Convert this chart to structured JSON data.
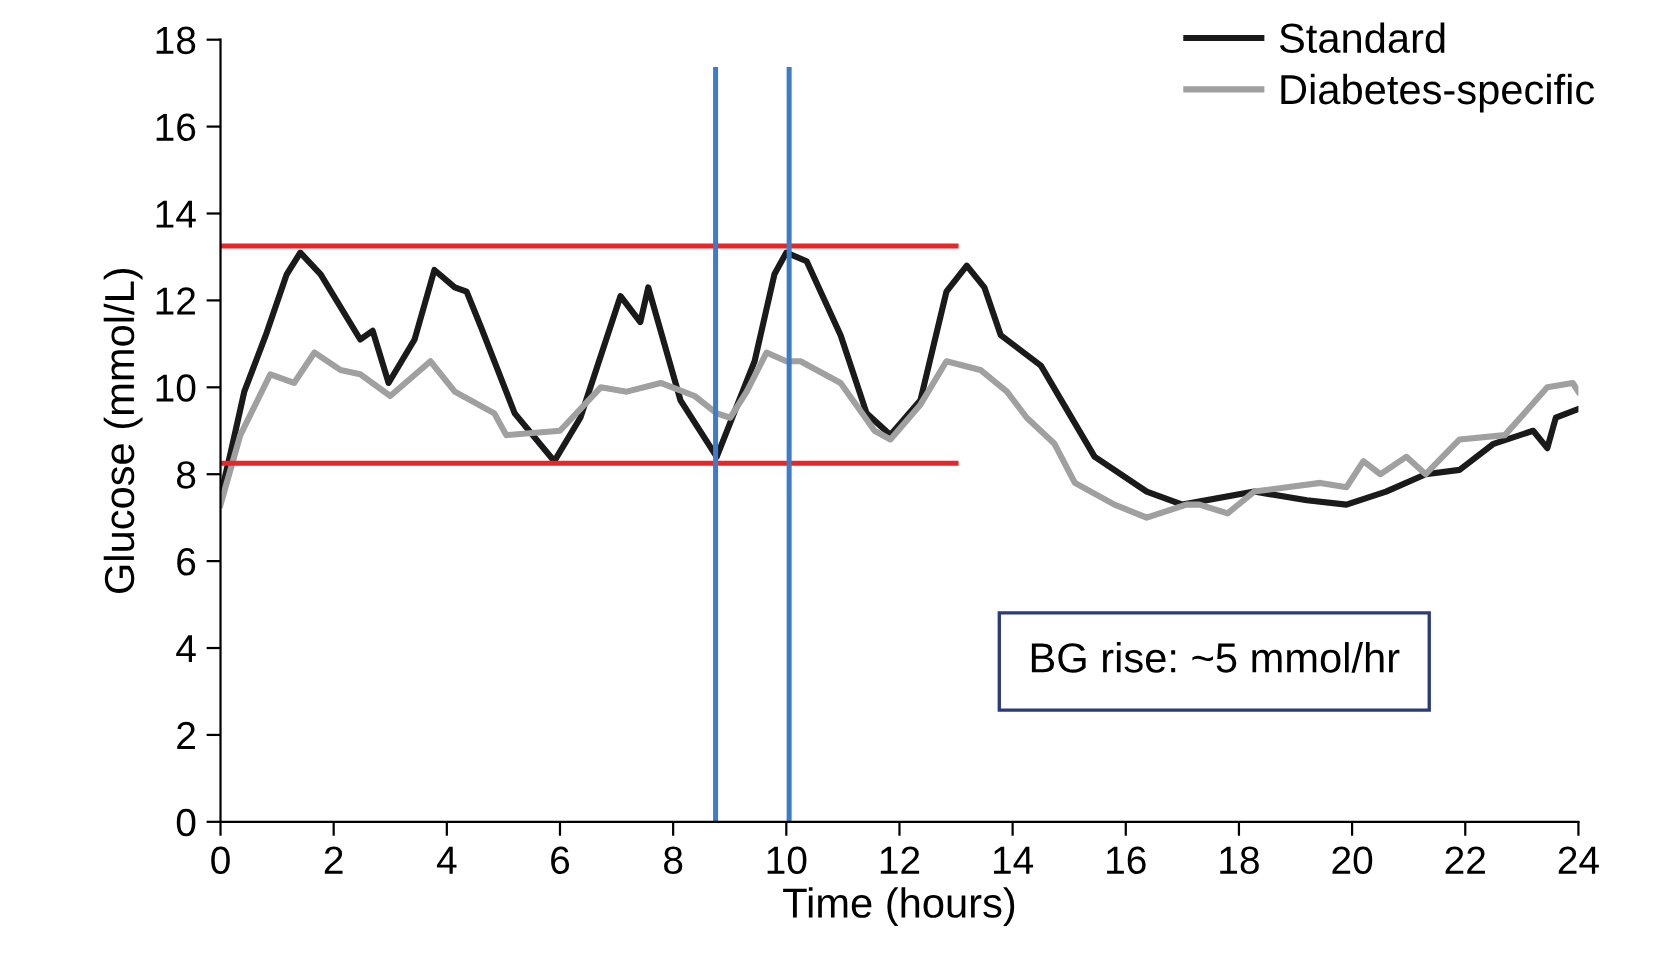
{
  "chart_data": {
    "type": "line",
    "xlabel": "Time (hours)",
    "ylabel": "Glucose (mmol/L)",
    "xlim": [
      0,
      24
    ],
    "xticks": [
      0,
      2,
      4,
      6,
      8,
      10,
      12,
      14,
      16,
      18,
      20,
      22,
      24
    ],
    "ylim": [
      0,
      18
    ],
    "yticks": [
      0,
      2,
      4,
      6,
      8,
      10,
      12,
      14,
      16,
      18
    ],
    "grid": false,
    "legend": "top right",
    "marker": "none",
    "line_style": "solid",
    "series": [
      {
        "name": "Standard",
        "color": "#1a1a1a",
        "x": [
          0,
          0.18,
          0.42,
          0.8,
          1.17,
          1.41,
          1.77,
          2.47,
          2.69,
          2.97,
          3.43,
          3.78,
          4.14,
          4.35,
          4.6,
          5.2,
          5.9,
          6.36,
          7.07,
          7.42,
          7.56,
          8.13,
          8.77,
          9.44,
          9.79,
          10.0,
          10.36,
          10.96,
          11.42,
          11.84,
          12.37,
          12.83,
          13.19,
          13.5,
          13.79,
          14.5,
          15.45,
          16.37,
          17.0,
          18.27,
          19.2,
          19.9,
          20.6,
          21.3,
          21.9,
          22.5,
          23.2,
          23.45,
          23.6,
          24.0
        ],
        "values": [
          7.5,
          8.5,
          9.9,
          11.2,
          12.6,
          13.1,
          12.6,
          11.1,
          11.3,
          10.1,
          11.1,
          12.7,
          12.3,
          12.2,
          11.4,
          9.4,
          8.3,
          9.3,
          12.1,
          11.5,
          12.3,
          9.7,
          8.4,
          10.6,
          12.6,
          13.1,
          12.9,
          11.2,
          9.4,
          8.9,
          9.7,
          12.2,
          12.8,
          12.3,
          11.2,
          10.5,
          8.4,
          7.6,
          7.3,
          7.6,
          7.4,
          7.3,
          7.6,
          8.0,
          8.1,
          8.7,
          9.0,
          8.6,
          9.3,
          9.5
        ]
      },
      {
        "name": "Diabetes-specific",
        "color": "#a0a0a0",
        "x": [
          0,
          0.35,
          0.88,
          1.3,
          1.66,
          2.12,
          2.47,
          3.0,
          3.71,
          4.14,
          4.84,
          5.05,
          6.0,
          6.72,
          7.18,
          7.78,
          8.38,
          8.77,
          9.01,
          9.3,
          9.65,
          10.0,
          10.25,
          10.96,
          11.56,
          11.84,
          12.37,
          12.83,
          13.43,
          13.9,
          14.25,
          14.74,
          15.1,
          15.8,
          16.37,
          17.07,
          17.3,
          17.8,
          18.27,
          19.44,
          19.9,
          20.2,
          20.5,
          20.96,
          21.3,
          21.9,
          22.7,
          23.45,
          23.9,
          24.0
        ],
        "values": [
          7.3,
          8.9,
          10.3,
          10.1,
          10.8,
          10.4,
          10.3,
          9.8,
          10.6,
          9.9,
          9.4,
          8.9,
          9.0,
          10.0,
          9.9,
          10.1,
          9.8,
          9.4,
          9.3,
          9.9,
          10.8,
          10.6,
          10.6,
          10.1,
          9.0,
          8.8,
          9.6,
          10.6,
          10.4,
          9.9,
          9.3,
          8.7,
          7.8,
          7.3,
          7.0,
          7.3,
          7.3,
          7.1,
          7.6,
          7.8,
          7.7,
          8.3,
          8.0,
          8.4,
          8.0,
          8.8,
          8.9,
          10.0,
          10.1,
          9.9
        ]
      },
      {
        "color": "#e8262a",
        "x": [
          0,
          13
        ],
        "values": [
          13.25,
          13.25
        ]
      },
      {
        "color": "#e8262a",
        "x": [
          0,
          13
        ],
        "values": [
          8.25,
          8.25
        ]
      }
    ],
    "ref_lines": [
      {
        "axis": "x",
        "value": 8.75,
        "color": "#3d7cc9"
      },
      {
        "axis": "x",
        "value": 10.05,
        "color": "#3d7cc9"
      }
    ],
    "annotations": [
      "BG rise: ~5 mmol/hr"
    ]
  }
}
